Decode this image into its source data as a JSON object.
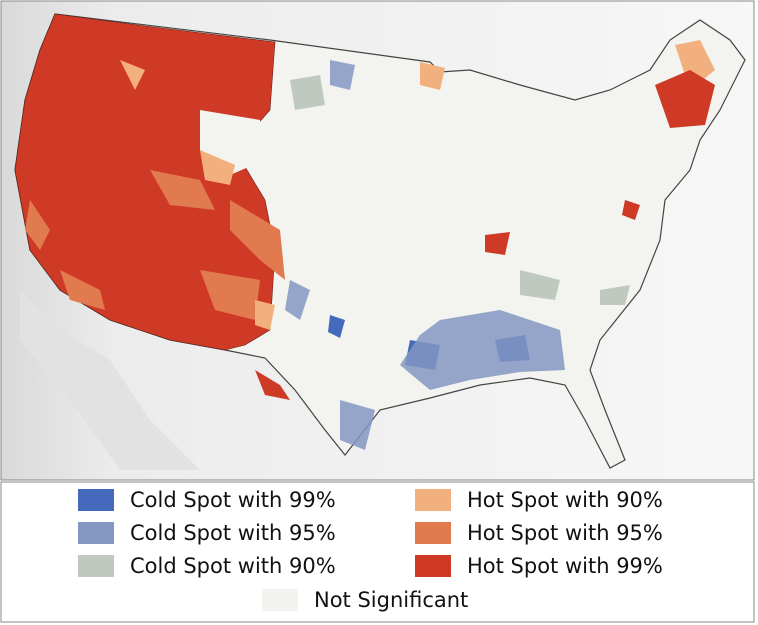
{
  "legend": {
    "items": [
      {
        "label": "Cold Spot with 99%",
        "color": "#4569bd"
      },
      {
        "label": "Cold Spot with 95%",
        "color": "#8397c2"
      },
      {
        "label": "Cold Spot with 90%",
        "color": "#c0c9c0"
      },
      {
        "label": "Hot Spot with 90%",
        "color": "#f2b07e"
      },
      {
        "label": "Hot Spot with 95%",
        "color": "#e27a4f"
      },
      {
        "label": "Hot Spot with 99%",
        "color": "#cf3a26"
      },
      {
        "label": "Not Significant",
        "color": "#f2f2ee"
      }
    ]
  }
}
